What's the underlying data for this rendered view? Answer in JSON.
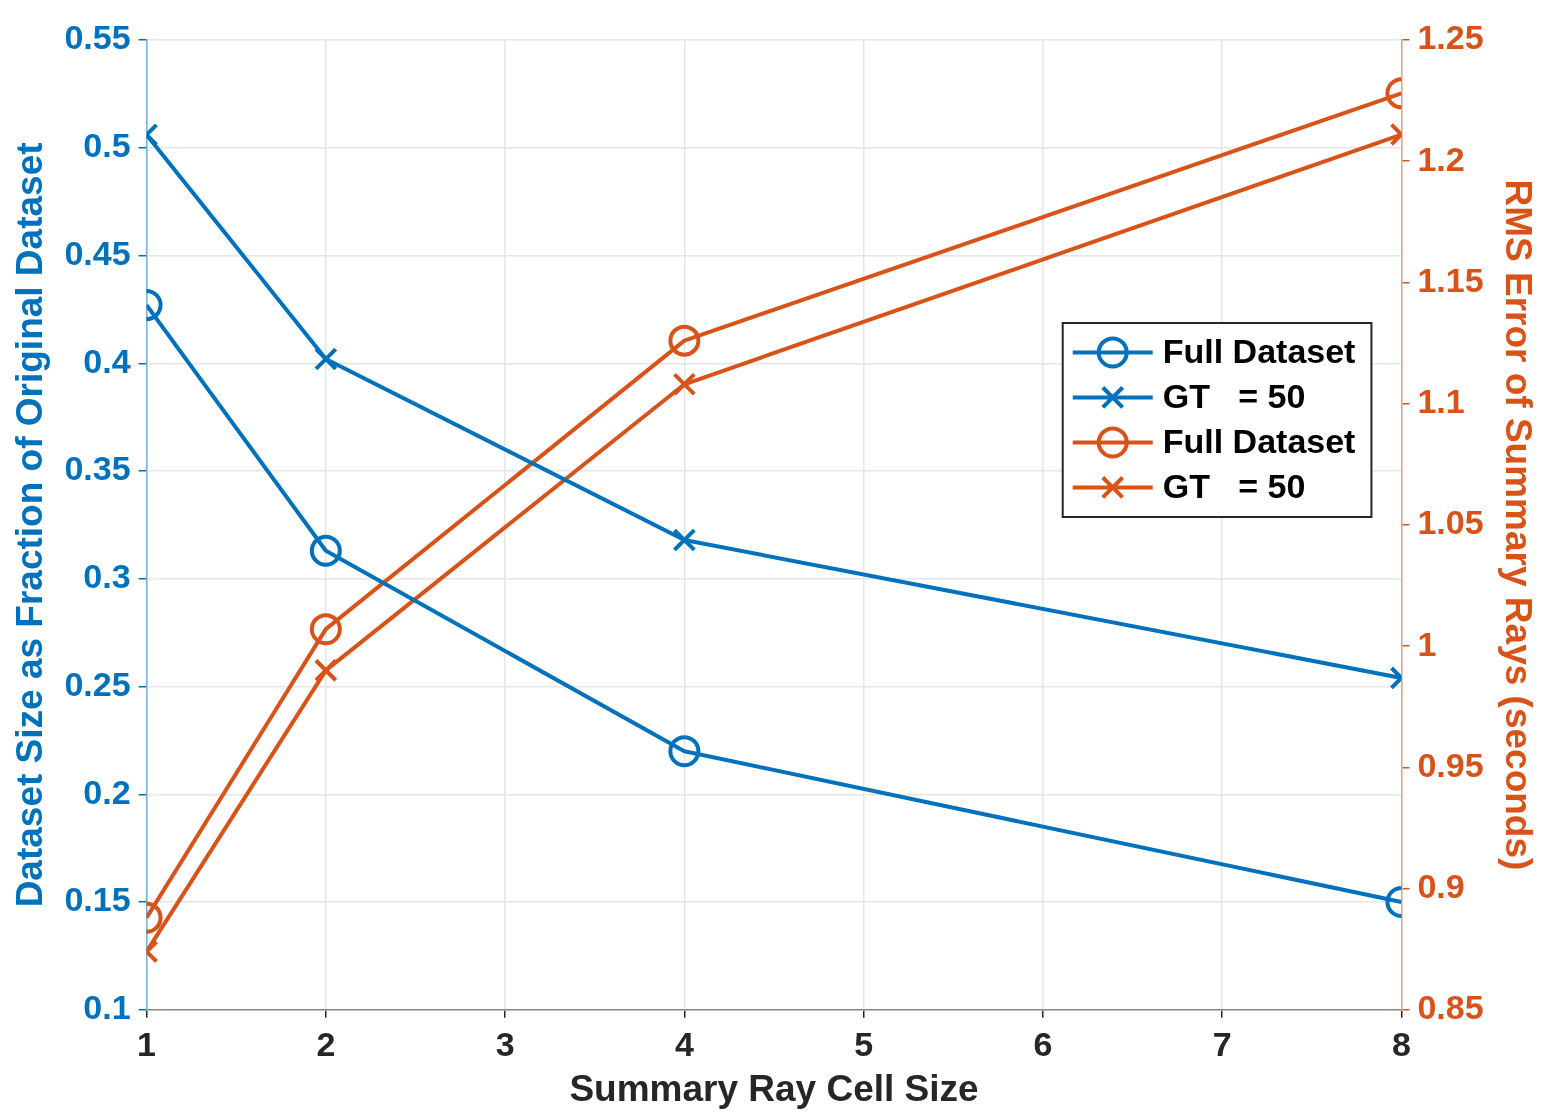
{
  "chart_data": {
    "type": "line",
    "xlabel": "Summary Ray Cell Size",
    "ylabel": "Dataset Size as Fraction of Original Dataset",
    "y2label": "RMS Error of Summary Rays (seconds)",
    "x": [
      1,
      2,
      4,
      8
    ],
    "series": [
      {
        "name": "Full Dataset",
        "color": "#0072bd",
        "marker": "circle",
        "values": [
          0.427,
          0.313,
          0.22,
          0.15
        ]
      },
      {
        "name": "GT   = 50",
        "color": "#0072bd",
        "marker": "cross",
        "values": [
          0.506,
          0.402,
          0.318,
          0.254
        ]
      },
      {
        "name": "Full Dataset",
        "color": "#d95319",
        "marker": "circle",
        "axis": "y2",
        "values": [
          0.888,
          1.007,
          1.126,
          1.228
        ]
      },
      {
        "name": "GT   = 50",
        "color": "#d95319",
        "marker": "cross",
        "axis": "y2",
        "values": [
          0.874,
          0.99,
          1.108,
          1.211
        ]
      }
    ],
    "xlim": [
      1,
      8
    ],
    "xticks": [
      1,
      2,
      3,
      4,
      5,
      6,
      7,
      8
    ],
    "ylim": [
      0.1,
      0.55
    ],
    "yticks": [
      0.1,
      0.15,
      0.2,
      0.25,
      0.3,
      0.35,
      0.4,
      0.45,
      0.5,
      0.55
    ],
    "y2lim": [
      0.85,
      1.25
    ],
    "y2ticks": [
      0.85,
      0.9,
      0.95,
      1,
      1.05,
      1.1,
      1.15,
      1.2,
      1.25
    ],
    "grid": true,
    "legend": "right",
    "line_style": "solid"
  }
}
